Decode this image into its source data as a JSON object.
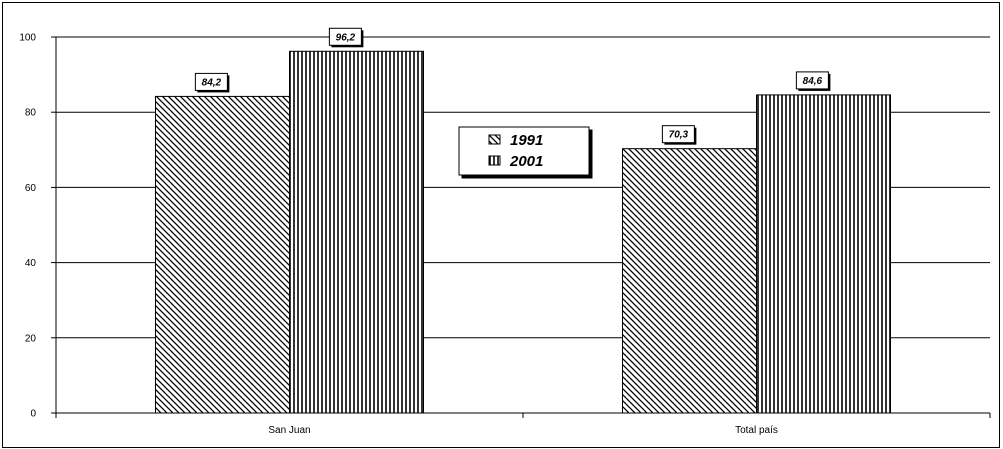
{
  "chart_data": {
    "type": "bar",
    "categories": [
      "San Juan",
      "Total país"
    ],
    "series": [
      {
        "name": "1991",
        "values": [
          84.2,
          70.3
        ],
        "labels": [
          "84,2",
          "70,3"
        ],
        "pattern": "diagonal"
      },
      {
        "name": "2001",
        "values": [
          96.2,
          84.6
        ],
        "labels": [
          "96,2",
          "84,6"
        ],
        "pattern": "vertical"
      }
    ],
    "yticks": [
      "0",
      "20",
      "40",
      "60",
      "80",
      "100"
    ],
    "ylim": [
      0,
      100
    ],
    "grid": true,
    "legend": "center"
  },
  "colors": {
    "ink": "#000000",
    "background": "#ffffff"
  }
}
